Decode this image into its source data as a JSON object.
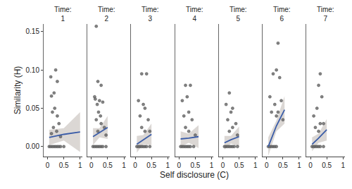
{
  "chart_data": {
    "type": "scatter",
    "x_label": "Self disclosure (C)",
    "y_label": "Similarity (H)",
    "ylim": [
      -0.013,
      0.16
    ],
    "yticks": [
      {
        "value": 0,
        "label": "0.00"
      },
      {
        "value": 0.05,
        "label": "0.05"
      },
      {
        "value": 0.1,
        "label": "0.10"
      },
      {
        "value": 0.15,
        "label": "0.15"
      }
    ],
    "xlim": [
      -0.12,
      1.06
    ],
    "xticks": [
      0,
      0.5,
      1
    ],
    "panels": [
      {
        "title": "Time: 1",
        "x": [
          0.05,
          0.1,
          0.15,
          0.2,
          0.25,
          0.3,
          0.35,
          0.4,
          0.5,
          0.1,
          0.12,
          0.2,
          0.25,
          0.3,
          0.22,
          0.15,
          0.3,
          0.35,
          0.18,
          0.28,
          0.12,
          0.4
        ],
        "values": [
          0,
          0,
          0,
          0,
          0,
          0,
          0,
          0,
          0,
          0.091,
          0.066,
          0.07,
          0.1,
          0.085,
          0.05,
          0.045,
          0.04,
          0.03,
          0.025,
          0.02,
          0.017,
          0.013
        ],
        "fit": {
          "x": [
            0.05,
            0.5,
            1
          ],
          "values": [
            0.012,
            0.016,
            0.019
          ],
          "lower": [
            0.002,
            0.008,
            -0.007
          ],
          "upper": [
            0.022,
            0.024,
            0.045
          ]
        }
      },
      {
        "title": "Time: 2",
        "x": [
          0.05,
          0.1,
          0.15,
          0.2,
          0.25,
          0.3,
          0.35,
          0.45,
          0.15,
          0.1,
          0.2,
          0.3,
          0.25,
          0.12,
          0.35,
          0.18,
          0.22,
          0.28,
          0.15,
          0.3,
          0.4,
          0.2,
          0.45
        ],
        "values": [
          0,
          0,
          0,
          0,
          0,
          0,
          0,
          0,
          0.157,
          0.065,
          0.085,
          0.08,
          0.06,
          0.062,
          0.058,
          0.055,
          0.045,
          0.04,
          0.035,
          0.03,
          0.025,
          0.02,
          0.015
        ],
        "fit": {
          "x": [
            0.05,
            0.25,
            0.5
          ],
          "values": [
            0.013,
            0.018,
            0.025
          ],
          "lower": [
            0.002,
            0.012,
            0.01
          ],
          "upper": [
            0.024,
            0.024,
            0.04
          ]
        }
      },
      {
        "title": "Time: 3",
        "x": [
          0.05,
          0.1,
          0.15,
          0.2,
          0.25,
          0.3,
          0.35,
          0.45,
          0.2,
          0.35,
          0.1,
          0.25,
          0.3,
          0.15,
          0.4,
          0.2,
          0.3,
          0.45
        ],
        "values": [
          0,
          0,
          0,
          0,
          0,
          0,
          0,
          0,
          0.095,
          0.095,
          0.06,
          0.055,
          0.05,
          0.04,
          0.035,
          0.025,
          0.02,
          0.02
        ],
        "fit": {
          "x": [
            0.05,
            0.25,
            0.5
          ],
          "values": [
            0.003,
            0.009,
            0.016
          ],
          "lower": [
            -0.008,
            0.003,
            0.002
          ],
          "upper": [
            0.014,
            0.015,
            0.03
          ]
        }
      },
      {
        "title": "Time: 4",
        "x": [
          0.05,
          0.1,
          0.15,
          0.2,
          0.25,
          0.3,
          0.35,
          0.45,
          0.2,
          0.35,
          0.25,
          0.1,
          0.3,
          0.15,
          0.4,
          0.2,
          0.3,
          0.5
        ],
        "values": [
          0,
          0,
          0,
          0,
          0,
          0,
          0,
          0,
          0.08,
          0.08,
          0.065,
          0.06,
          0.045,
          0.04,
          0.035,
          0.025,
          0.02,
          0.015
        ],
        "fit": {
          "x": [
            0.05,
            0.3,
            0.6
          ],
          "values": [
            0.01,
            0.011,
            0.013
          ],
          "lower": [
            0.0,
            0.005,
            -0.002
          ],
          "upper": [
            0.02,
            0.017,
            0.028
          ]
        }
      },
      {
        "title": "Time: 5",
        "x": [
          0.05,
          0.1,
          0.15,
          0.2,
          0.25,
          0.3,
          0.35,
          0.45,
          0.2,
          0.1,
          0.3,
          0.25,
          0.15,
          0.4,
          0.3,
          0.2,
          0.45
        ],
        "values": [
          0,
          0,
          0,
          0,
          0,
          0,
          0,
          0,
          0.07,
          0.055,
          0.05,
          0.045,
          0.035,
          0.03,
          0.025,
          0.02,
          0.015
        ],
        "fit": {
          "x": [
            0.05,
            0.25,
            0.5
          ],
          "values": [
            0.005,
            0.009,
            0.013
          ],
          "lower": [
            -0.004,
            0.004,
            0.0
          ],
          "upper": [
            0.014,
            0.014,
            0.026
          ]
        }
      },
      {
        "title": "Time: 6",
        "x": [
          0.05,
          0.1,
          0.15,
          0.2,
          0.25,
          0.3,
          0.35,
          0.3,
          0.2,
          0.4,
          0.1,
          0.25,
          0.45,
          0.15,
          0.35,
          0.5,
          0.3
        ],
        "values": [
          0,
          0,
          0,
          0,
          0,
          0,
          0.135,
          0.1,
          0.095,
          0.09,
          0.065,
          0.055,
          0.06,
          0.045,
          0.045,
          0.035,
          0.04
        ],
        "fit": {
          "x": [
            0.05,
            0.3,
            0.55
          ],
          "values": [
            0.0,
            0.027,
            0.048
          ],
          "lower": [
            -0.012,
            0.02,
            0.03
          ],
          "upper": [
            0.012,
            0.034,
            0.066
          ]
        }
      },
      {
        "title": "Time: 7",
        "x": [
          0.05,
          0.1,
          0.15,
          0.2,
          0.25,
          0.3,
          0.4,
          0.3,
          0.25,
          0.35,
          0.1,
          0.2,
          0.3,
          0.15,
          0.4,
          0.25
        ],
        "values": [
          0,
          0,
          0,
          0,
          0,
          0,
          0,
          0.095,
          0.08,
          0.065,
          0.04,
          0.05,
          0.03,
          0.025,
          0.03,
          0.02
        ],
        "fit": {
          "x": [
            0.05,
            0.25,
            0.5
          ],
          "values": [
            0.003,
            0.011,
            0.022
          ],
          "lower": [
            -0.006,
            0.005,
            0.008
          ],
          "upper": [
            0.012,
            0.017,
            0.036
          ]
        }
      }
    ]
  }
}
